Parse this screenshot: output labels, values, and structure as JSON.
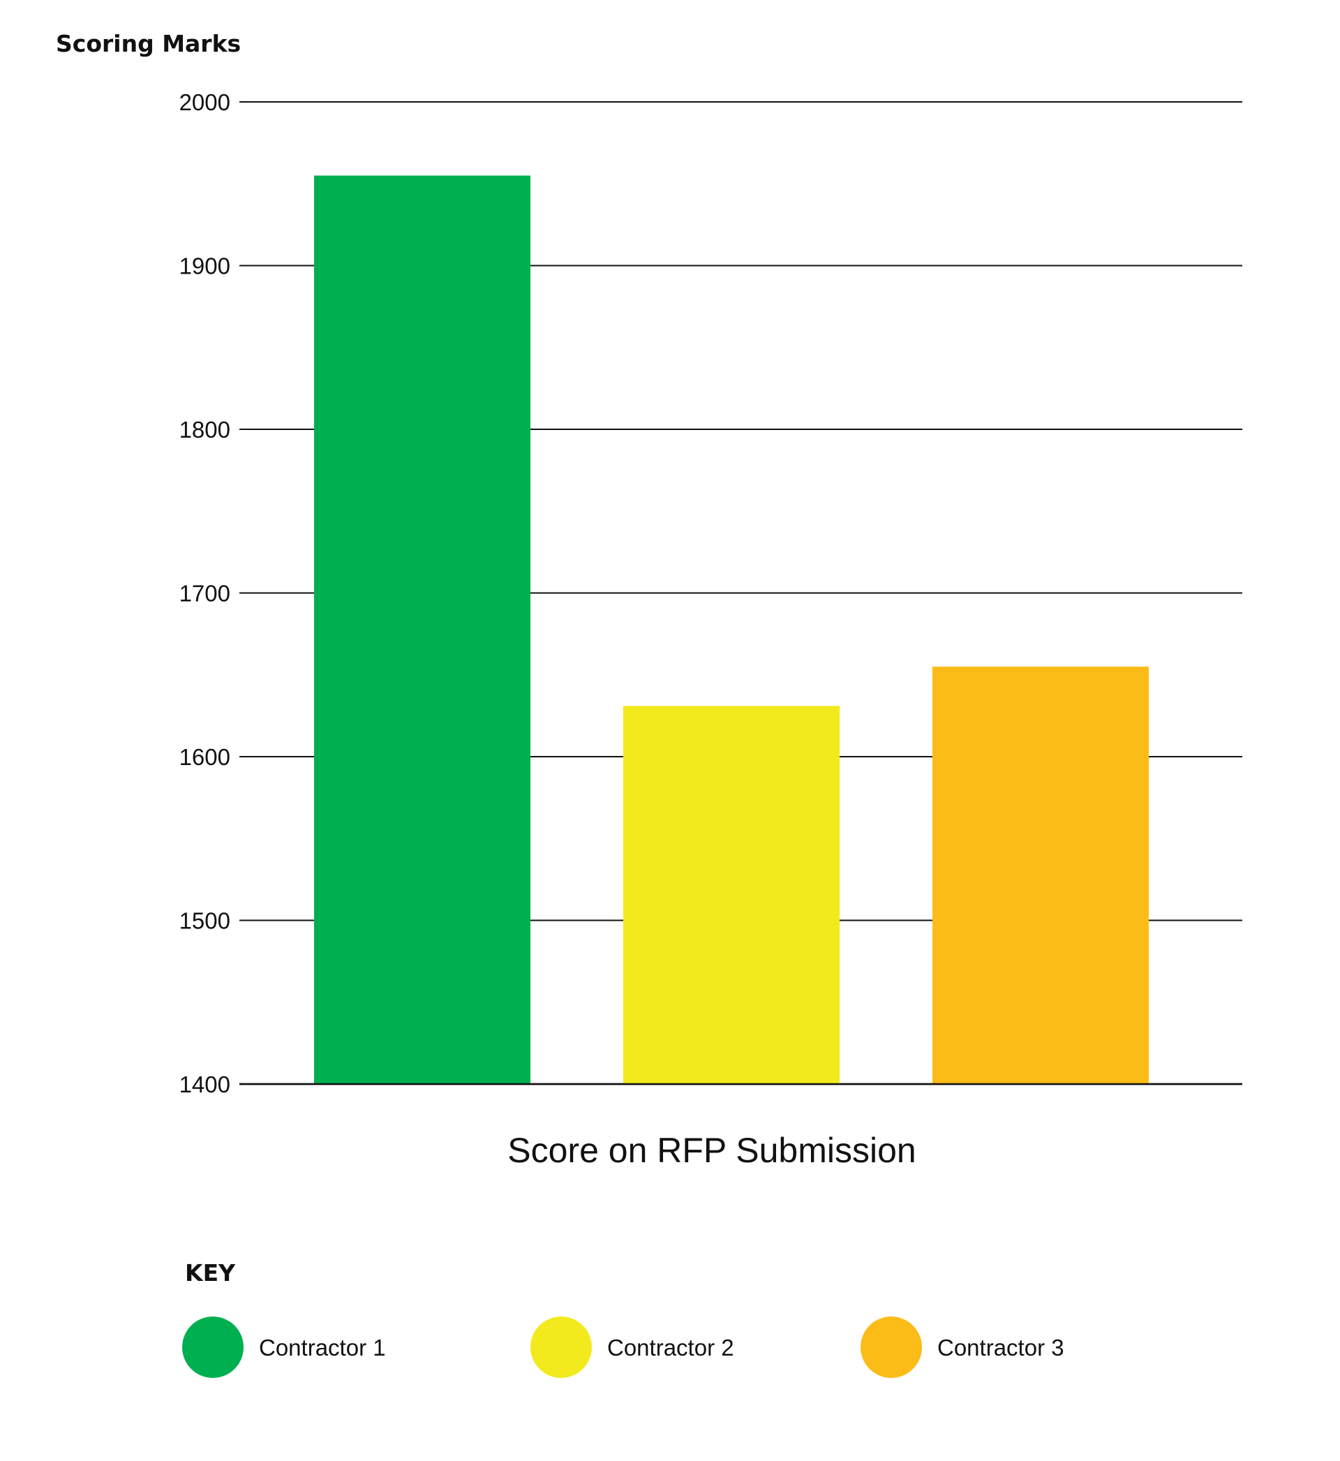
{
  "chart_data": {
    "type": "bar",
    "ylabel": "Scoring Marks",
    "xlabel": "Score on RFP Submission",
    "ylim": [
      1400,
      2000
    ],
    "yticks": [
      1400,
      1500,
      1600,
      1700,
      1800,
      1900,
      2000
    ],
    "grid": true,
    "categories": [
      "Contractor 1",
      "Contractor 2",
      "Contractor 3"
    ],
    "values": [
      1955,
      1631,
      1655
    ],
    "colors": [
      "#00b050",
      "#f2ea1c",
      "#fcbc17"
    ],
    "legend": {
      "title": "KEY",
      "placement": "bottom",
      "entries": [
        "Contractor 1",
        "Contractor 2",
        "Contractor 3"
      ]
    }
  }
}
